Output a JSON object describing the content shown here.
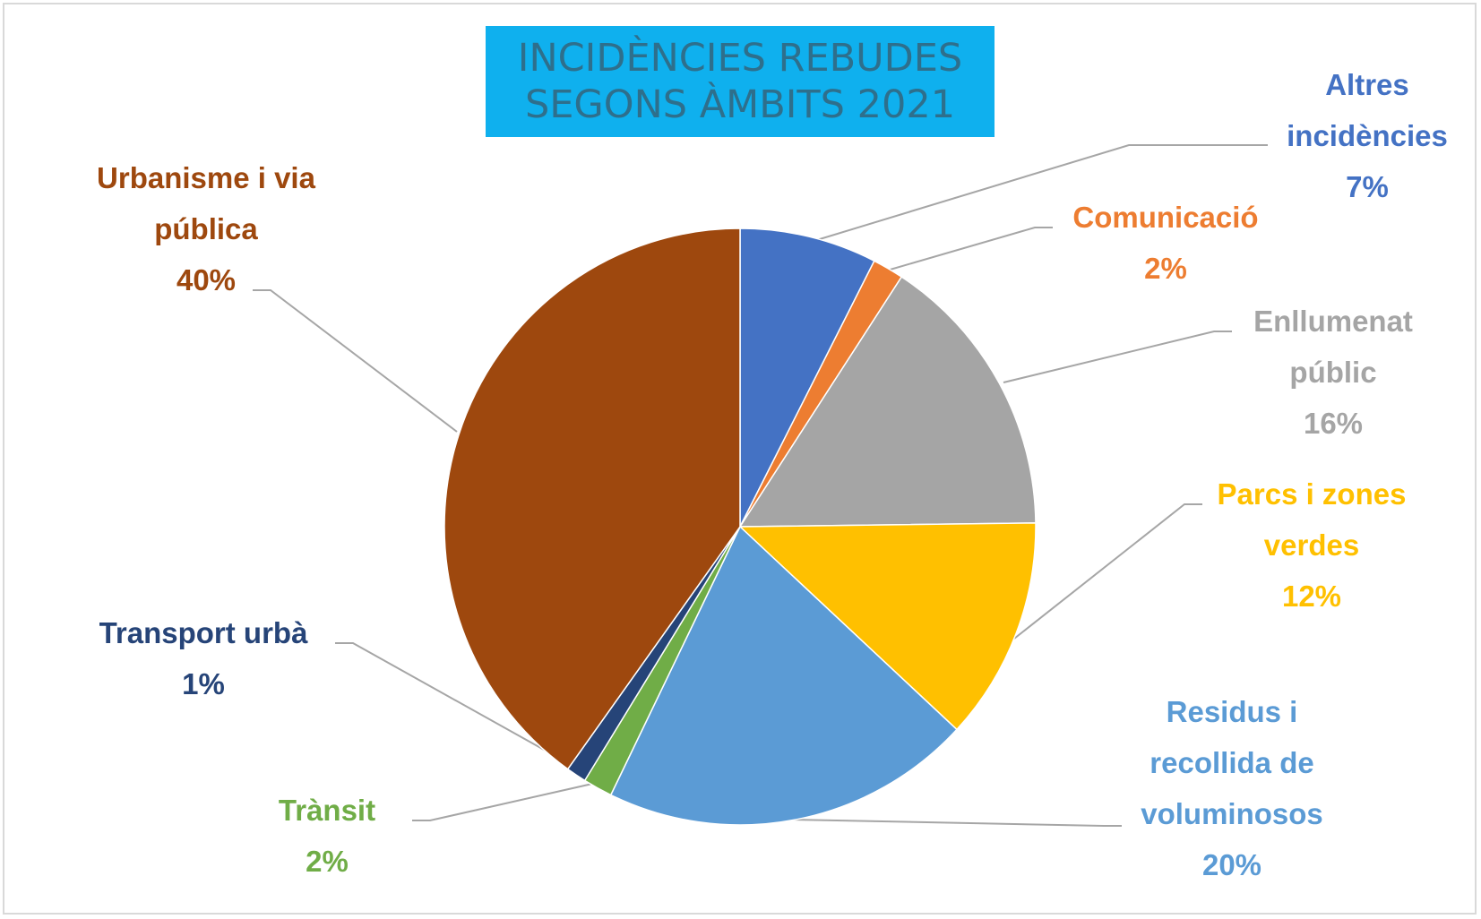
{
  "chart_data": {
    "type": "pie",
    "title": [
      "INCIDÈNCIES REBUDES",
      "SEGONS ÀMBITS 2021"
    ],
    "slices": [
      {
        "name": "Altres incidències",
        "label_lines": [
          "Altres",
          "incidències"
        ],
        "pct_label": "7%",
        "value": 7.5,
        "color": "#4472c4"
      },
      {
        "name": "Comunicació",
        "label_lines": [
          "Comunicació"
        ],
        "pct_label": "2%",
        "value": 1.7,
        "color": "#ed7d31"
      },
      {
        "name": "Enllumenat públic",
        "label_lines": [
          "Enllumenat",
          "públic"
        ],
        "pct_label": "16%",
        "value": 15.6,
        "color": "#a5a5a5"
      },
      {
        "name": "Parcs i zones verdes",
        "label_lines": [
          "Parcs i zones",
          "verdes"
        ],
        "pct_label": "12%",
        "value": 12.1,
        "color": "#ffc000"
      },
      {
        "name": "Residus i recollida de voluminosos",
        "label_lines": [
          "Residus i",
          "recollida de",
          "voluminosos"
        ],
        "pct_label": "20%",
        "value": 20.3,
        "color": "#5b9bd5"
      },
      {
        "name": "Trànsit",
        "label_lines": [
          "Trànsit"
        ],
        "pct_label": "2%",
        "value": 1.6,
        "color": "#70ad47"
      },
      {
        "name": "Transport urbà",
        "label_lines": [
          "Transport urbà"
        ],
        "pct_label": "1%",
        "value": 1.1,
        "color": "#264478"
      },
      {
        "name": "Urbanisme i via pública",
        "label_lines": [
          "Urbanisme i via",
          "pública"
        ],
        "pct_label": "40%",
        "value": 40.1,
        "color": "#9e480e"
      }
    ]
  }
}
